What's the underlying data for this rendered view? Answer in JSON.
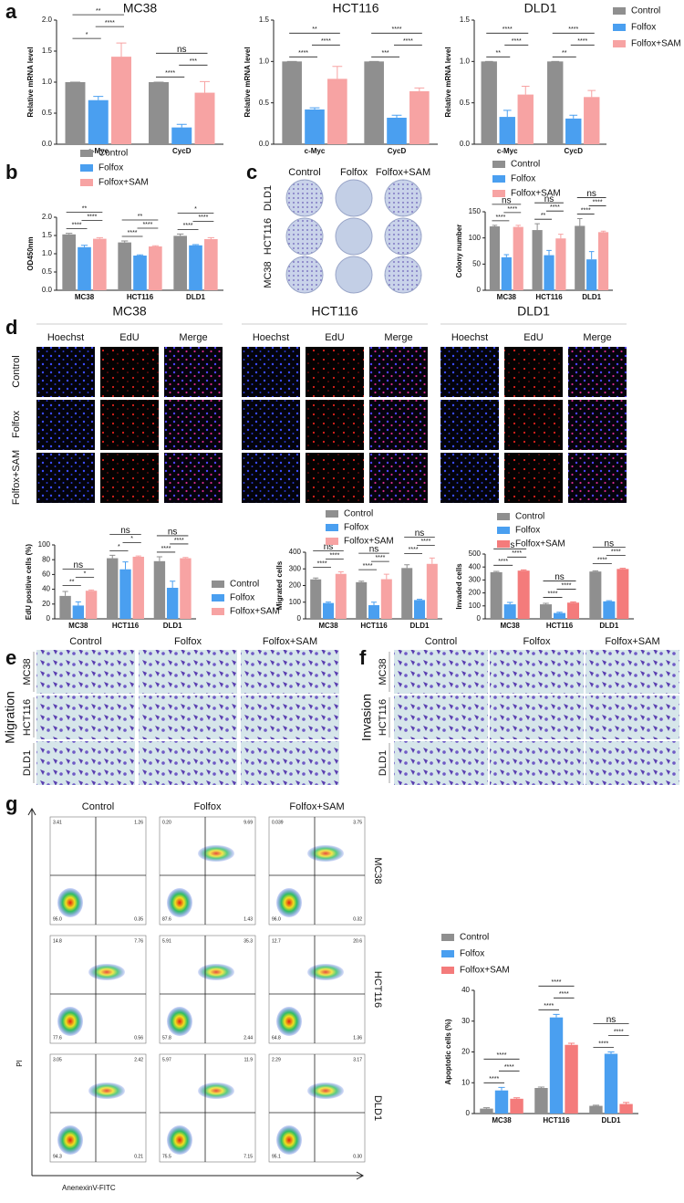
{
  "chart_data": [
    {
      "type": "bar",
      "title": "MC38",
      "ylabel": "Relative mRNA level",
      "categories": [
        "c-Myc",
        "CycD"
      ],
      "series": [
        {
          "name": "Control",
          "color": "#8f8f8f",
          "values": [
            1,
            1
          ],
          "errors": [
            0,
            0
          ]
        },
        {
          "name": "Folfox",
          "color": "#4a9ff0",
          "values": [
            0.71,
            0.27
          ],
          "errors": [
            0.06,
            0.05
          ]
        },
        {
          "name": "Folfox+SAM",
          "color": "#f7a3a3",
          "values": [
            1.41,
            0.83
          ],
          "errors": [
            0.22,
            0.18
          ]
        }
      ],
      "ylim": [
        0,
        2.0
      ],
      "yticks": [
        {
          "value": 0,
          "label": "0.0"
        },
        0.5,
        {
          "value": 1,
          "label": "1.0"
        },
        1.5,
        {
          "value": 2,
          "label": "2.0"
        }
      ],
      "annotations": [
        [
          "**",
          "****",
          "*"
        ],
        [
          "ns",
          "***",
          "****"
        ]
      ]
    },
    {
      "type": "bar",
      "title": "HCT116",
      "ylabel": "Relative mRNA level",
      "categories": [
        "c-Myc",
        "CycD"
      ],
      "series": [
        {
          "name": "Control",
          "color": "#8f8f8f",
          "values": [
            1,
            1
          ],
          "errors": [
            0,
            0
          ]
        },
        {
          "name": "Folfox",
          "color": "#4a9ff0",
          "values": [
            0.42,
            0.32
          ],
          "errors": [
            0.02,
            0.03
          ]
        },
        {
          "name": "Folfox+SAM",
          "color": "#f7a3a3",
          "values": [
            0.79,
            0.64
          ],
          "errors": [
            0.15,
            0.04
          ]
        }
      ],
      "ylim": [
        0,
        1.5
      ],
      "yticks": [
        {
          "value": 0,
          "label": "0.0"
        },
        0.5,
        {
          "value": 1,
          "label": "1.0"
        },
        1.5
      ],
      "annotations": [
        [
          "**",
          "****",
          "****"
        ],
        [
          "****",
          "****",
          "***"
        ]
      ]
    },
    {
      "type": "bar",
      "title": "DLD1",
      "ylabel": "Relative mRNA level",
      "categories": [
        "c-Myc",
        "CycD"
      ],
      "series": [
        {
          "name": "Control",
          "color": "#8f8f8f",
          "values": [
            1,
            1
          ],
          "errors": [
            0,
            0
          ]
        },
        {
          "name": "Folfox",
          "color": "#4a9ff0",
          "values": [
            0.33,
            0.31
          ],
          "errors": [
            0.08,
            0.04
          ]
        },
        {
          "name": "Folfox+SAM",
          "color": "#f7a3a3",
          "values": [
            0.6,
            0.57
          ],
          "errors": [
            0.1,
            0.08
          ]
        }
      ],
      "ylim": [
        0,
        1.5
      ],
      "yticks": [
        {
          "value": 0,
          "label": "0.0"
        },
        0.5,
        {
          "value": 1,
          "label": "1.0"
        },
        1.5
      ],
      "annotations": [
        [
          "****",
          "****",
          "**"
        ],
        [
          "****",
          "****",
          "**"
        ]
      ],
      "legend": true
    },
    {
      "type": "bar",
      "ylabel": "OD450nm",
      "categories": [
        "MC38",
        "HCT116",
        "DLD1"
      ],
      "series": [
        {
          "name": "Control",
          "color": "#8f8f8f",
          "values": [
            1.53,
            1.31,
            1.49
          ],
          "errors": [
            0.03,
            0.04,
            0.05
          ]
        },
        {
          "name": "Folfox",
          "color": "#4a9ff0",
          "values": [
            1.18,
            0.95,
            1.23
          ],
          "errors": [
            0.05,
            0.02,
            0.02
          ]
        },
        {
          "name": "Folfox+SAM",
          "color": "#f7a3a3",
          "values": [
            1.41,
            1.2,
            1.4
          ],
          "errors": [
            0.03,
            0.02,
            0.04
          ]
        }
      ],
      "ylim": [
        0,
        2.0
      ],
      "yticks": [
        {
          "value": 0,
          "label": "0.0"
        },
        0.5,
        {
          "value": 1,
          "label": "1.0"
        },
        1.5,
        {
          "value": 2,
          "label": "2.0"
        }
      ],
      "annotations": [
        [
          "**",
          "****",
          "****"
        ],
        [
          "**",
          "****",
          "****"
        ],
        [
          "*",
          "****",
          "****"
        ]
      ],
      "legend": true
    },
    {
      "type": "bar",
      "ylabel": "Colony number",
      "categories": [
        "MC38",
        "HCT116",
        "DLD1"
      ],
      "series": [
        {
          "name": "Control",
          "color": "#8f8f8f",
          "values": [
            122,
            115,
            123
          ],
          "errors": [
            2,
            12,
            14
          ]
        },
        {
          "name": "Folfox",
          "color": "#4a9ff0",
          "values": [
            63,
            67,
            59
          ],
          "errors": [
            5,
            9,
            15
          ]
        },
        {
          "name": "Folfox+SAM",
          "color": "#f7a3a3",
          "values": [
            121,
            99,
            111
          ],
          "errors": [
            3,
            8,
            2
          ]
        }
      ],
      "ylim": [
        0,
        150
      ],
      "yticks": [
        0,
        50,
        100,
        150
      ],
      "annotations": [
        [
          "ns",
          "****",
          "****"
        ],
        [
          "ns",
          "****",
          "**"
        ],
        [
          "ns",
          "****",
          "****"
        ]
      ],
      "legend": true
    },
    {
      "type": "bar",
      "ylabel": "EdU positive cells (%)",
      "categories": [
        "MC38",
        "HCT116",
        "DLD1"
      ],
      "series": [
        {
          "name": "Control",
          "color": "#8f8f8f",
          "values": [
            31,
            82,
            78
          ],
          "errors": [
            6,
            4,
            6
          ]
        },
        {
          "name": "Folfox",
          "color": "#4a9ff0",
          "values": [
            18,
            67,
            42
          ],
          "errors": [
            5,
            10,
            9
          ]
        },
        {
          "name": "Folfox+SAM",
          "color": "#f7a3a3",
          "values": [
            38,
            84,
            82
          ],
          "errors": [
            1,
            1,
            1
          ]
        }
      ],
      "ylim": [
        0,
        100
      ],
      "yticks": [
        0,
        20,
        40,
        60,
        80,
        100
      ],
      "annotations": [
        [
          "ns",
          "*",
          "**"
        ],
        [
          "ns",
          "*",
          "*"
        ],
        [
          "ns",
          "****",
          "****"
        ]
      ],
      "legend": true
    },
    {
      "type": "bar",
      "ylabel": "Migrated cells",
      "categories": [
        "MC38",
        "HCT116",
        "DLD1"
      ],
      "series": [
        {
          "name": "Control",
          "color": "#8f8f8f",
          "values": [
            237,
            220,
            305
          ],
          "errors": [
            8,
            6,
            20
          ]
        },
        {
          "name": "Folfox",
          "color": "#4a9ff0",
          "values": [
            95,
            82,
            113
          ],
          "errors": [
            6,
            18,
            4
          ]
        },
        {
          "name": "Folfox+SAM",
          "color": "#f7a3a3",
          "values": [
            270,
            238,
            330
          ],
          "errors": [
            12,
            30,
            35
          ]
        }
      ],
      "ylim": [
        0,
        400
      ],
      "yticks": [
        0,
        100,
        200,
        300,
        400
      ],
      "annotations": [
        [
          "ns",
          "****",
          "****"
        ],
        [
          "ns",
          "****",
          "****"
        ],
        [
          "ns",
          "****",
          "****"
        ]
      ],
      "legend": true
    },
    {
      "type": "bar",
      "ylabel": "Invaded cells",
      "categories": [
        "MC38",
        "HCT116",
        "DLD1"
      ],
      "series": [
        {
          "name": "Control",
          "color": "#8f8f8f",
          "values": [
            360,
            112,
            365
          ],
          "errors": [
            6,
            8,
            6
          ]
        },
        {
          "name": "Folfox",
          "color": "#4a9ff0",
          "values": [
            112,
            45,
            135
          ],
          "errors": [
            15,
            6,
            5
          ]
        },
        {
          "name": "Folfox+SAM",
          "color": "#f47b7b",
          "values": [
            372,
            125,
            385
          ],
          "errors": [
            6,
            5,
            5
          ]
        }
      ],
      "ylim": [
        0,
        500
      ],
      "yticks": [
        0,
        100,
        200,
        300,
        400,
        500
      ],
      "annotations": [
        [
          "ns",
          "****",
          "****"
        ],
        [
          "ns",
          "****",
          "****"
        ],
        [
          "ns",
          "****",
          "****"
        ]
      ],
      "legend": true
    },
    {
      "type": "bar",
      "ylabel": "Apoptotic cells (%)",
      "categories": [
        "MC38",
        "HCT116",
        "DLD1"
      ],
      "series": [
        {
          "name": "Control",
          "color": "#8f8f8f",
          "values": [
            1.6,
            8.3,
            2.5
          ],
          "errors": [
            0.3,
            0.3,
            0.2
          ]
        },
        {
          "name": "Folfox",
          "color": "#4a9ff0",
          "values": [
            7.5,
            31.2,
            19.4
          ],
          "errors": [
            1,
            1,
            0.6
          ]
        },
        {
          "name": "Folfox+SAM",
          "color": "#f47b7b",
          "values": [
            4.8,
            22.3,
            3.1
          ],
          "errors": [
            0.3,
            0.5,
            0.5
          ]
        }
      ],
      "ylim": [
        0,
        40
      ],
      "yticks": [
        0,
        10,
        20,
        30,
        40
      ],
      "annotations": [
        [
          "****",
          "****",
          "****"
        ],
        [
          "****",
          "****",
          "****"
        ],
        [
          "ns",
          "****",
          "****"
        ]
      ],
      "legend": true
    }
  ],
  "panel_labels": [
    "a",
    "b",
    "c",
    "d",
    "e",
    "f",
    "g"
  ],
  "colony": {
    "columns": [
      "Control",
      "Folfox",
      "Folfox+SAM"
    ],
    "rows": [
      "DLD1",
      "HCT116",
      "MC38"
    ]
  },
  "edu": {
    "lines": [
      "MC38",
      "HCT116",
      "DLD1"
    ],
    "stains": [
      "Hoechst",
      "EdU",
      "Merge"
    ],
    "rows": [
      "Control",
      "Folfox",
      "Folfox+SAM"
    ]
  },
  "migration": {
    "title": "Migration",
    "columns": [
      "Control",
      "Folfox",
      "Folfox+SAM"
    ],
    "rows": [
      "MC38",
      "HCT116",
      "DLD1"
    ]
  },
  "invasion": {
    "title": "Invasion",
    "columns": [
      "Control",
      "Folfox",
      "Folfox+SAM"
    ],
    "rows": [
      "MC38",
      "HCT116",
      "DLD1"
    ]
  },
  "flow": {
    "columns": [
      "Control",
      "Folfox",
      "Folfox+SAM"
    ],
    "rows": [
      "MC38",
      "HCT116",
      "DLD1"
    ],
    "ylabel": "PI",
    "xlabel": "AnenexinV-FITC",
    "quadrants": [
      [
        [
          "3.41",
          "1.26",
          "95.0",
          "0.35"
        ],
        [
          "0.20",
          "9.69",
          "87.6",
          "1.43"
        ],
        [
          "0.039",
          "3.75",
          "96.0",
          "0.32"
        ]
      ],
      [
        [
          "14.8",
          "7.76",
          "77.6",
          "0.56"
        ],
        [
          "5.91",
          "35.3",
          "57.8",
          "2.44"
        ],
        [
          "12.7",
          "20.6",
          "64.8",
          "1.36"
        ]
      ],
      [
        [
          "3.05",
          "2.42",
          "94.3",
          "0.21"
        ],
        [
          "5.97",
          "11.9",
          "75.5",
          "7.15"
        ],
        [
          "2.29",
          "3.17",
          "95.1",
          "0.30"
        ]
      ]
    ]
  }
}
